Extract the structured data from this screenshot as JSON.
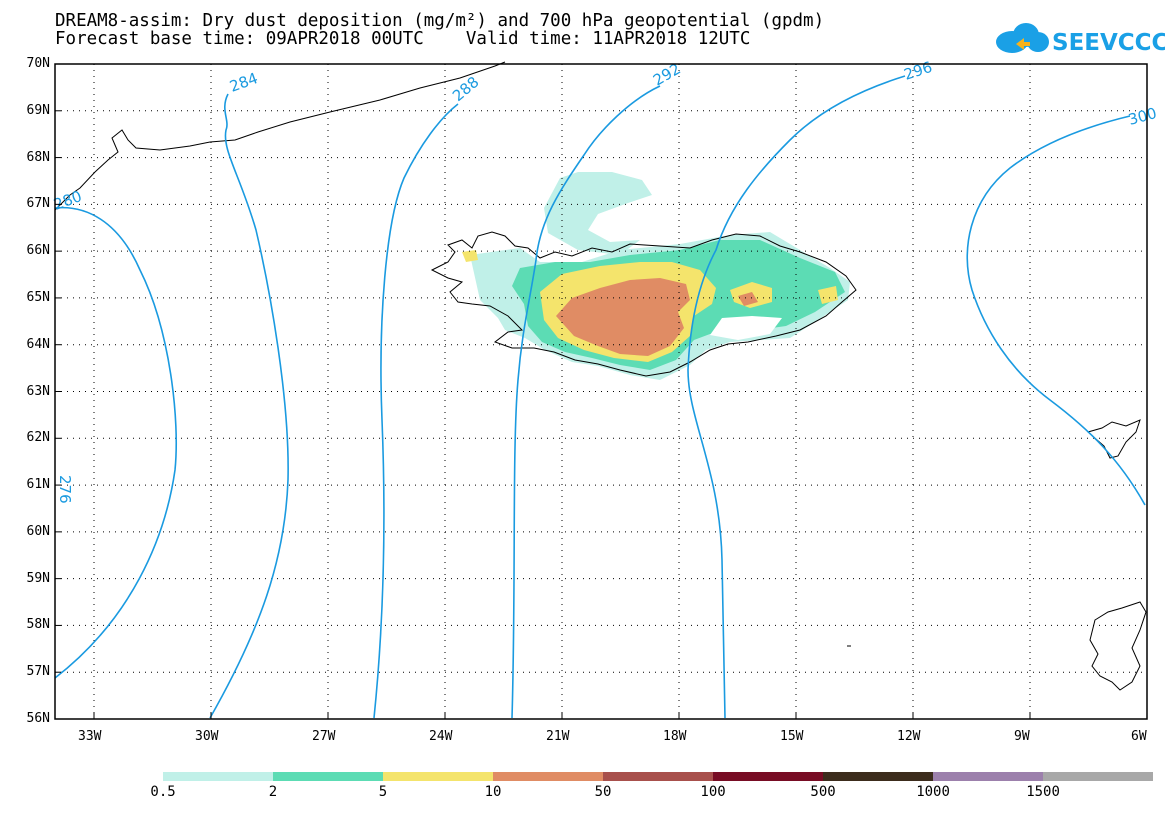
{
  "title_line1": "DREAM8-assim: Dry dust deposition (mg/m²) and 700 hPa geopotential (gpdm)",
  "title_line2": "Forecast base time: 09APR2018 00UTC    Valid time: 11APR2018 12UTC",
  "logo_text": "SEEVCCC",
  "lat_labels": [
    "70N",
    "69N",
    "68N",
    "67N",
    "66N",
    "65N",
    "64N",
    "63N",
    "62N",
    "61N",
    "60N",
    "59N",
    "58N",
    "57N",
    "56N"
  ],
  "lon_labels": [
    "33W",
    "30W",
    "27W",
    "24W",
    "21W",
    "18W",
    "15W",
    "12W",
    "9W",
    "6W"
  ],
  "contour_labels": [
    "280",
    "284",
    "288",
    "292",
    "296",
    "300",
    "276"
  ],
  "colorbar": {
    "labels": [
      "0.5",
      "2",
      "5",
      "10",
      "50",
      "100",
      "500",
      "1000",
      "1500"
    ],
    "colors": [
      "#c0f0e8",
      "#5cdcb4",
      "#f4e46c",
      "#e08c64",
      "#a8504c",
      "#780c24",
      "#3c2c1c",
      "#9c80ac",
      "#a8a8a8"
    ]
  }
}
